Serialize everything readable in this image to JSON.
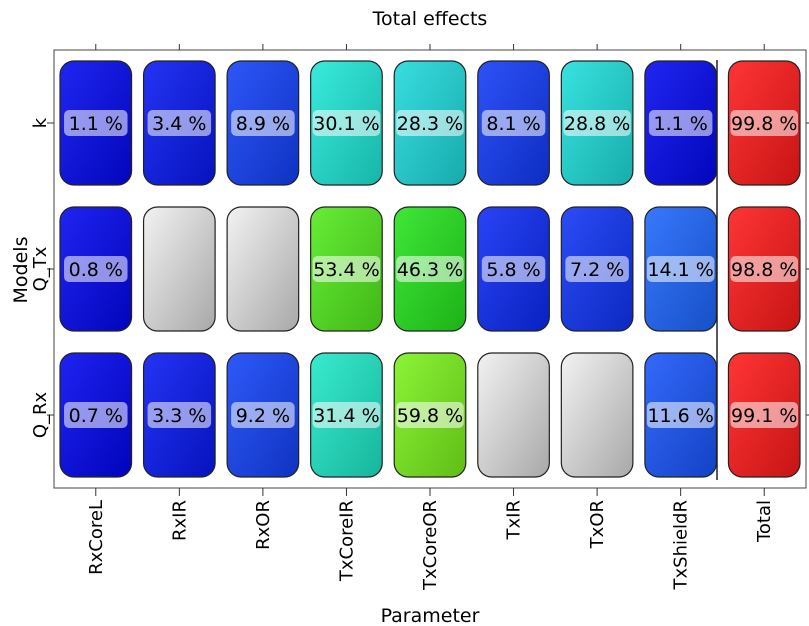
{
  "chart_data": {
    "type": "heatmap",
    "title": "Total effects",
    "xlabel": "Parameter",
    "ylabel": "Models",
    "columns": [
      "RxCoreL",
      "RxIR",
      "RxOR",
      "TxCoreIR",
      "TxCoreOR",
      "TxIR",
      "TxOR",
      "TxShieldR",
      "Total"
    ],
    "rows": [
      "k",
      "Q_Tx",
      "Q_Rx"
    ],
    "values": [
      [
        1.1,
        3.4,
        8.9,
        30.1,
        28.3,
        8.1,
        28.8,
        1.1,
        99.8
      ],
      [
        0.8,
        null,
        null,
        53.4,
        46.3,
        5.8,
        7.2,
        14.1,
        98.8
      ],
      [
        0.7,
        3.3,
        9.2,
        31.4,
        59.8,
        null,
        null,
        11.6,
        99.1
      ]
    ],
    "labels": [
      [
        "1.1 %",
        "3.4 %",
        "8.9 %",
        "30.1 %",
        "28.3 %",
        "8.1 %",
        "28.8 %",
        "1.1 %",
        "99.8 %"
      ],
      [
        "0.8 %",
        "",
        "",
        "53.4 %",
        "46.3 %",
        "5.8 %",
        "7.2 %",
        "14.1 %",
        "98.8 %"
      ],
      [
        "0.7 %",
        "3.3 %",
        "9.2 %",
        "31.4 %",
        "59.8 %",
        "",
        "",
        "11.6 %",
        "99.1 %"
      ]
    ],
    "unit": "%",
    "missing_color": "#c8c8c8",
    "total_color": "#ff1a1a",
    "color_scale": [
      "#0000ee",
      "#1f6cff",
      "#1ee8d8",
      "#1de31d",
      "#7cf21c"
    ]
  }
}
